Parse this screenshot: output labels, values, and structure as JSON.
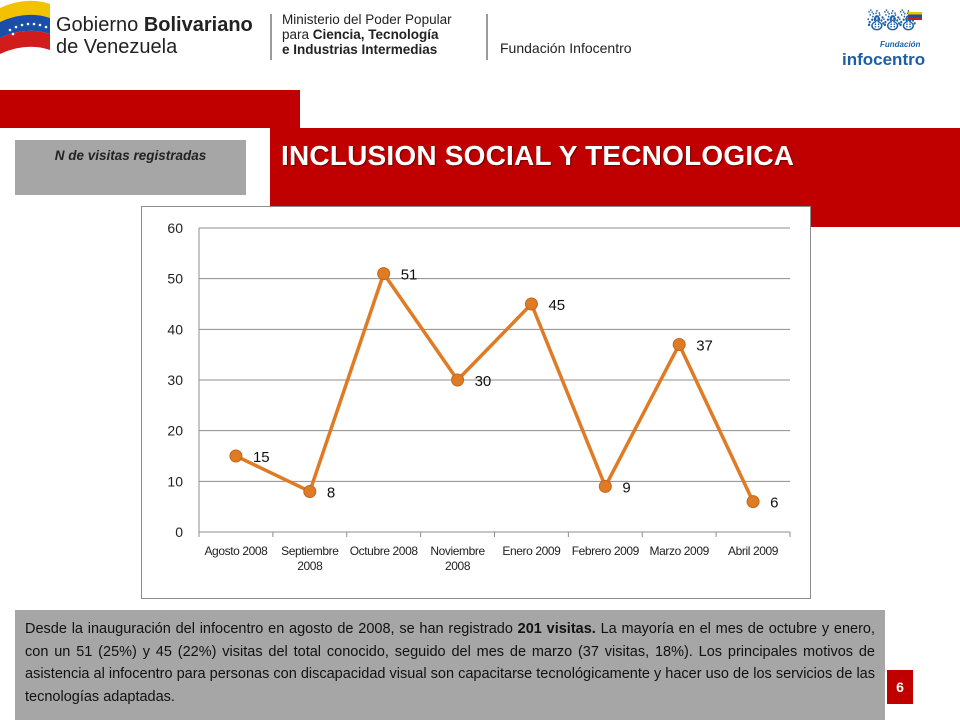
{
  "header": {
    "gov_line1_prefix": "Gobierno ",
    "gov_line1_bold": "Bolivariano",
    "gov_line2": "de Venezuela",
    "ministry_line1": "Ministerio del Poder Popular",
    "ministry_line2_prefix": "para ",
    "ministry_line2_bold": "Ciencia, Tecnología",
    "ministry_line3": "e Industrias Intermedias",
    "foundation": "Fundación Infocentro",
    "logo_small": "Fundación",
    "logo_big": "infocentro"
  },
  "title": "INCLUSION SOCIAL Y TECNOLOGICA",
  "label": "N de visitas registradas",
  "chart_data": {
    "type": "line",
    "categories": [
      "Agosto 2008",
      "Septiembre 2008",
      "Octubre 2008",
      "Noviembre 2008",
      "Enero 2009",
      "Febrero 2009",
      "Marzo 2009",
      "Abril 2009"
    ],
    "category_lines": [
      [
        "Agosto 2008"
      ],
      [
        "Septiembre",
        "2008"
      ],
      [
        "Octubre 2008"
      ],
      [
        "Noviembre",
        "2008"
      ],
      [
        "Enero 2009"
      ],
      [
        "Febrero 2009"
      ],
      [
        "Marzo 2009"
      ],
      [
        "Abril 2009"
      ]
    ],
    "values": [
      15,
      8,
      51,
      30,
      45,
      9,
      37,
      6
    ],
    "ylim": [
      0,
      60
    ],
    "yticks": [
      0,
      10,
      20,
      30,
      40,
      50,
      60
    ],
    "grid": true,
    "data_labels": true,
    "line_color": "#e07b25"
  },
  "description": {
    "part1": "Desde la inauguración del infocentro en agosto de 2008, se han registrado ",
    "bold": "201 visitas.",
    "part2": " La mayoría en el mes de octubre y enero, con un 51 (25%) y 45 (22%) visitas del total conocido, seguido del mes de marzo (37 visitas, 18%). Los principales motivos de asistencia al infocentro para personas con discapacidad visual son capacitarse tecnológicamente y hacer uso de los servicios de las tecnologías adaptadas."
  },
  "page_number": "6",
  "colors": {
    "accent_red": "#c00000",
    "grey_panel": "#a6a6a6",
    "series": "#e07b25"
  }
}
